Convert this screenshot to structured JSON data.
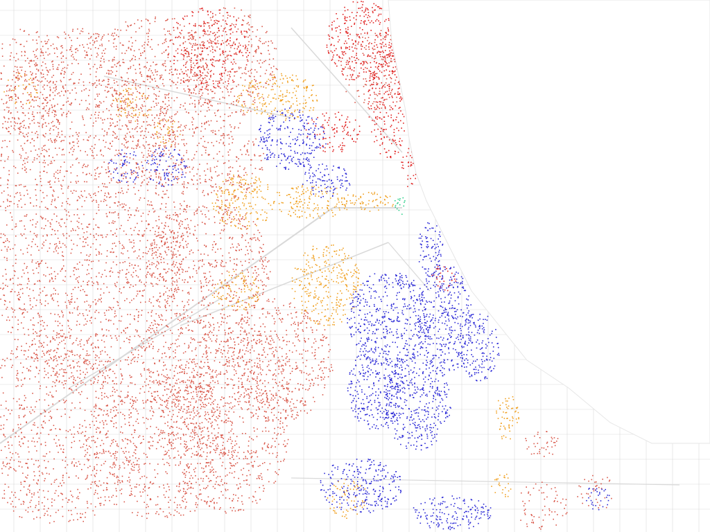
{
  "map": {
    "kind": "dot-density",
    "background": "#ffffff",
    "water_color": "#ffffff",
    "road_color": "#d9d9d9",
    "categories": [
      {
        "id": "red",
        "color": "#e0201e"
      },
      {
        "id": "salmon",
        "color": "#d9584a"
      },
      {
        "id": "orange",
        "color": "#f0a020"
      },
      {
        "id": "blue",
        "color": "#2a28d6"
      },
      {
        "id": "green",
        "color": "#2ccf8a"
      }
    ]
  }
}
